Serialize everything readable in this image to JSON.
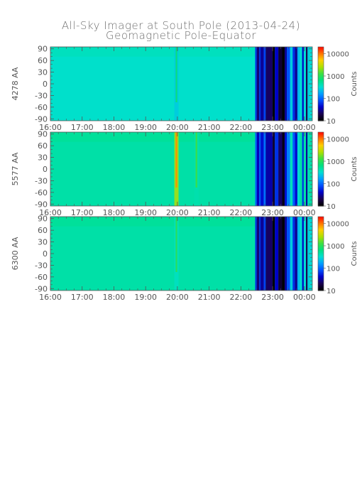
{
  "title": {
    "line1": "All-Sky Imager at South Pole (2013-04-24)",
    "line2": "Geomagnetic Pole-Equator"
  },
  "chart_data": {
    "type": "heatmap",
    "x_ticks": [
      "16:00",
      "17:00",
      "18:00",
      "19:00",
      "20:00",
      "21:00",
      "22:00",
      "23:00",
      "00:00"
    ],
    "x_range_hours": [
      16,
      24.25
    ],
    "y_ticks": [
      90,
      60,
      30,
      0,
      -30,
      -60,
      -90
    ],
    "y_range": [
      -95,
      95
    ],
    "colorbar": {
      "label": "Counts",
      "scale": "log",
      "ticks": [
        10,
        100,
        1000,
        10000
      ],
      "tick_labels": [
        "10",
        "100",
        "1000",
        "10000"
      ],
      "range": [
        10,
        20000
      ],
      "colormap": [
        "#000000",
        "#1a0050",
        "#0000c8",
        "#0050ff",
        "#00a0ff",
        "#00e0d0",
        "#00e080",
        "#40e040",
        "#b0e000",
        "#ffd000",
        "#ff7000",
        "#ff0000"
      ]
    },
    "panels": [
      {
        "ylabel": "4278 AA",
        "background_counts": 330,
        "features": [
          {
            "hour": 19.97,
            "counts": 700,
            "kind": "arc"
          },
          {
            "hour": 22.45,
            "counts": 40,
            "kind": "dark-start"
          }
        ]
      },
      {
        "ylabel": "5577 AA",
        "background_counts": 450,
        "features": [
          {
            "hour": 19.97,
            "counts": 8000,
            "kind": "arc"
          },
          {
            "hour": 20.6,
            "counts": 1200,
            "kind": "arc"
          },
          {
            "hour": 22.45,
            "counts": 60,
            "kind": "dark-start"
          }
        ]
      },
      {
        "ylabel": "6300 AA",
        "background_counts": 450,
        "features": [
          {
            "hour": 19.97,
            "counts": 1000,
            "kind": "arc"
          },
          {
            "hour": 22.45,
            "counts": 40,
            "kind": "dark-start"
          }
        ]
      }
    ]
  }
}
